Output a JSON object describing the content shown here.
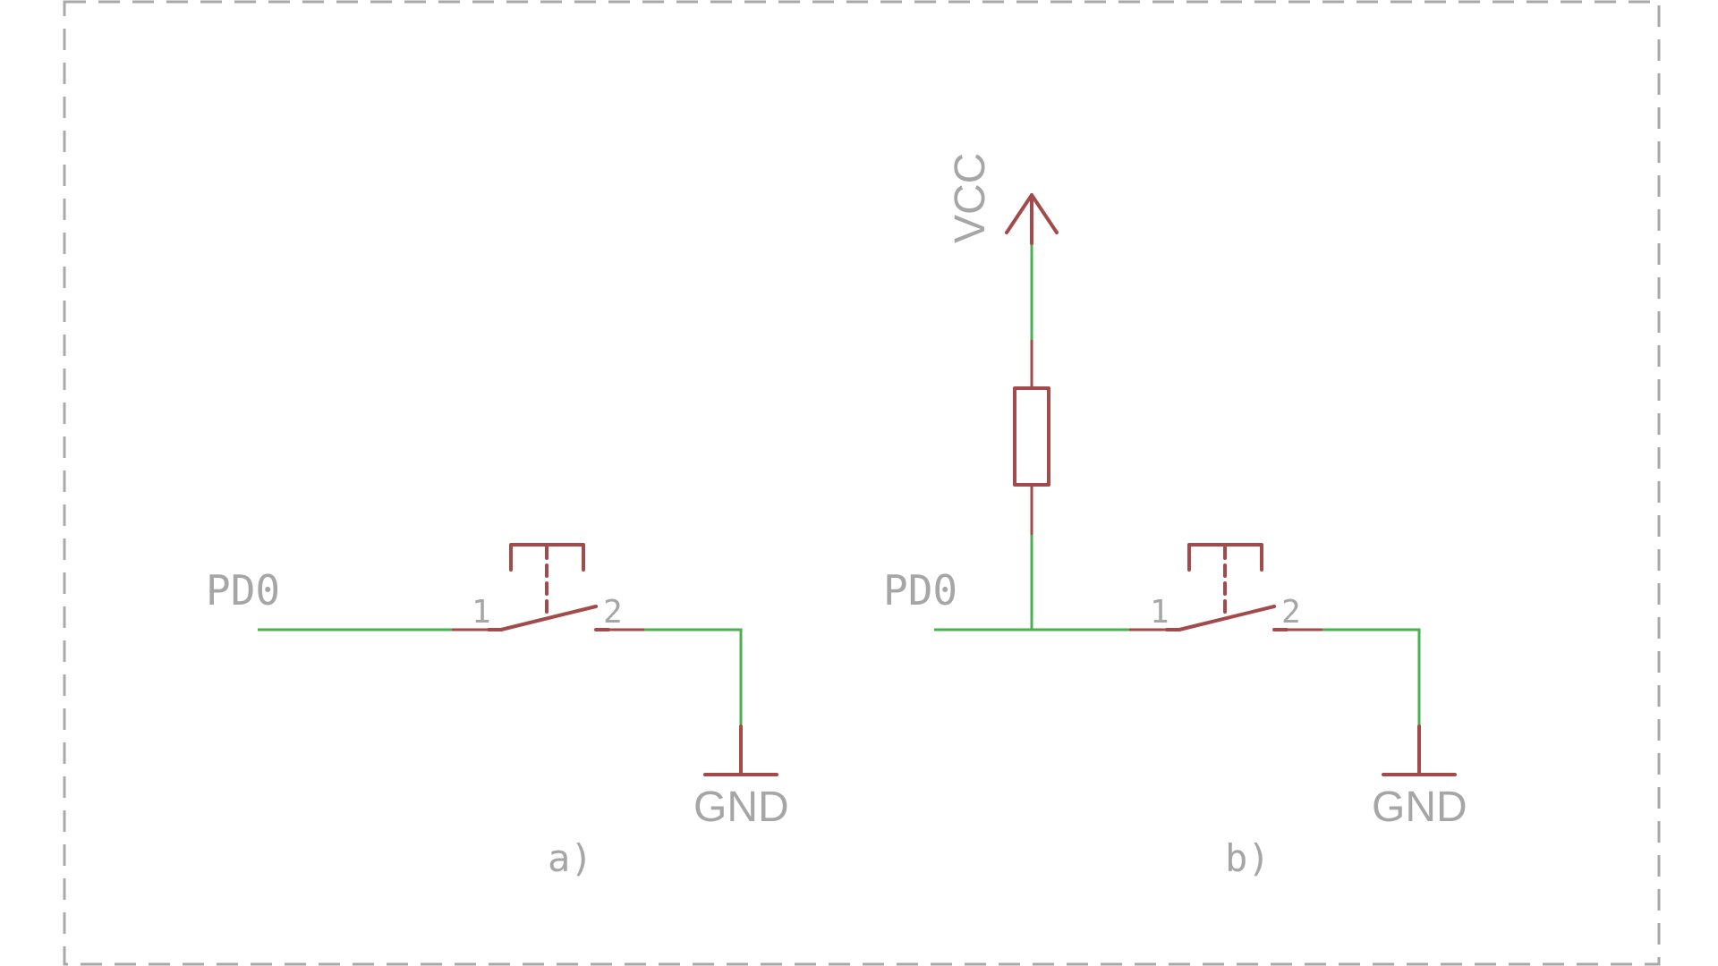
{
  "colors": {
    "wire": "#4caf50",
    "symbol": "#a34a4a",
    "label": "#a6a6a6",
    "frame": "#a8a8a8"
  },
  "circuit_a": {
    "net_label": "PD0",
    "pin1": "1",
    "pin2": "2",
    "gnd_label": "GND",
    "caption": "a)"
  },
  "circuit_b": {
    "net_label": "PD0",
    "pin1": "1",
    "pin2": "2",
    "gnd_label": "GND",
    "vcc_label": "VCC",
    "caption": "b)"
  }
}
